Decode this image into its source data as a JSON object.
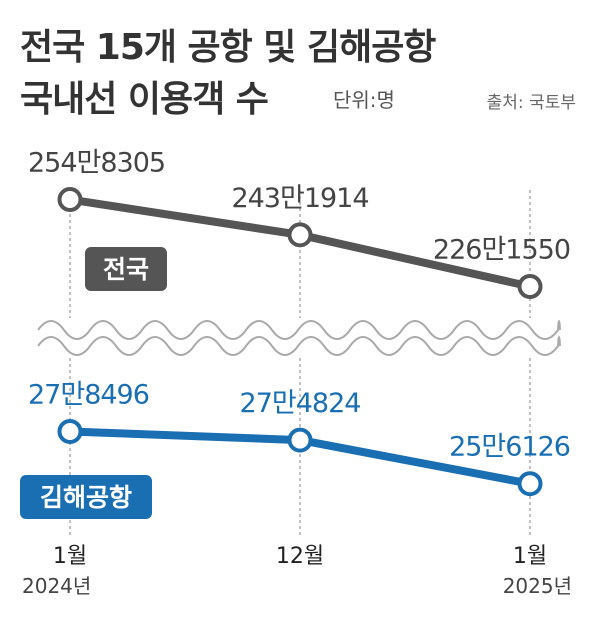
{
  "title_line1": "전국 15개 공항 및 김해공항",
  "title_line2": "국내선 이용객 수",
  "unit": "단위:명",
  "source": "출처: 국토부",
  "colors": {
    "national": "#555555",
    "gimhae": "#1a6fb3",
    "grid": "#999999",
    "background": "#ffffff"
  },
  "chart_data": {
    "type": "line",
    "categories": [
      "1월 2024년",
      "12월",
      "1월 2025년"
    ],
    "x_ticks": [
      {
        "month": "1월",
        "year": "2024년"
      },
      {
        "month": "12월",
        "year": ""
      },
      {
        "month": "1월",
        "year": "2025년"
      }
    ],
    "axis_break": true,
    "grid": "vertical-dashed",
    "series": [
      {
        "name": "전국",
        "color": "#555555",
        "values": [
          2548305,
          2431914,
          2261550
        ],
        "labels": [
          "254만8305",
          "243만1914",
          "226만1550"
        ]
      },
      {
        "name": "김해공항",
        "color": "#1a6fb3",
        "values": [
          278496,
          274824,
          256126
        ],
        "labels": [
          "27만8496",
          "27만4824",
          "25만6126"
        ]
      }
    ]
  }
}
